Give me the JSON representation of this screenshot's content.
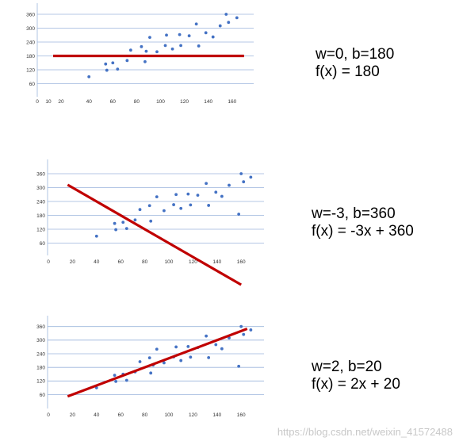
{
  "chart_data": [
    {
      "type": "scatter",
      "x_ticks": [
        0,
        10,
        20,
        40,
        60,
        80,
        100,
        120,
        140,
        160
      ],
      "y_ticks": [
        60,
        120,
        180,
        240,
        300,
        360
      ],
      "points": [
        [
          40,
          90
        ],
        [
          54,
          145
        ],
        [
          55,
          118
        ],
        [
          60,
          150
        ],
        [
          64,
          123
        ],
        [
          72,
          160
        ],
        [
          75,
          205
        ],
        [
          84,
          220
        ],
        [
          87,
          155
        ],
        [
          88,
          200
        ],
        [
          91,
          260
        ],
        [
          97,
          198
        ],
        [
          104,
          225
        ],
        [
          105,
          270
        ],
        [
          110,
          210
        ],
        [
          116,
          272
        ],
        [
          117,
          225
        ],
        [
          124,
          267
        ],
        [
          130,
          318
        ],
        [
          132,
          223
        ],
        [
          138,
          280
        ],
        [
          144,
          262
        ],
        [
          150,
          310
        ],
        [
          155,
          360
        ],
        [
          157,
          325
        ],
        [
          164,
          345
        ]
      ],
      "line": {
        "w": 0,
        "b": 180,
        "x_start": 10,
        "x_end": 170
      },
      "color_points": "#4472c4",
      "color_line": "#c00000",
      "equation_params": "w=0, b=180",
      "equation_formula": "f(x) = 180"
    },
    {
      "type": "scatter",
      "x_ticks": [
        0,
        20,
        40,
        60,
        80,
        100,
        120,
        140,
        160
      ],
      "y_ticks": [
        60,
        120,
        180,
        240,
        300,
        360
      ],
      "points": [
        [
          40,
          90
        ],
        [
          55,
          145
        ],
        [
          56,
          118
        ],
        [
          62,
          150
        ],
        [
          65,
          123
        ],
        [
          72,
          160
        ],
        [
          76,
          205
        ],
        [
          84,
          222
        ],
        [
          85,
          155
        ],
        [
          90,
          260
        ],
        [
          96,
          200
        ],
        [
          104,
          226
        ],
        [
          106,
          270
        ],
        [
          110,
          210
        ],
        [
          116,
          272
        ],
        [
          118,
          225
        ],
        [
          124,
          267
        ],
        [
          131,
          318
        ],
        [
          133,
          223
        ],
        [
          139,
          280
        ],
        [
          144,
          262
        ],
        [
          150,
          310
        ],
        [
          158,
          185
        ],
        [
          160,
          360
        ],
        [
          162,
          325
        ],
        [
          168,
          345
        ]
      ],
      "line": {
        "w": -3,
        "b": 360,
        "x_start": 16,
        "x_end": 160
      },
      "color_points": "#4472c4",
      "color_line": "#c00000",
      "equation_params": "w=-3, b=360",
      "equation_formula": "f(x) = -3x + 360"
    },
    {
      "type": "scatter",
      "x_ticks": [
        0,
        20,
        40,
        60,
        80,
        100,
        120,
        140,
        160
      ],
      "y_ticks": [
        60,
        120,
        180,
        240,
        300,
        360
      ],
      "points": [
        [
          40,
          90
        ],
        [
          55,
          145
        ],
        [
          56,
          118
        ],
        [
          62,
          150
        ],
        [
          65,
          123
        ],
        [
          72,
          160
        ],
        [
          76,
          205
        ],
        [
          84,
          222
        ],
        [
          85,
          155
        ],
        [
          87,
          190
        ],
        [
          90,
          260
        ],
        [
          96,
          200
        ],
        [
          104,
          226
        ],
        [
          106,
          270
        ],
        [
          110,
          210
        ],
        [
          116,
          272
        ],
        [
          118,
          225
        ],
        [
          124,
          267
        ],
        [
          131,
          318
        ],
        [
          133,
          223
        ],
        [
          139,
          280
        ],
        [
          144,
          262
        ],
        [
          150,
          310
        ],
        [
          158,
          185
        ],
        [
          160,
          360
        ],
        [
          162,
          325
        ],
        [
          168,
          345
        ]
      ],
      "line": {
        "w": 2,
        "b": 20,
        "x_start": 16,
        "x_end": 165
      },
      "color_points": "#4472c4",
      "color_line": "#c00000",
      "equation_params": "w=2, b=20",
      "equation_formula": "f(x) = 2x + 20"
    }
  ],
  "watermark": "https://blog.csdn.net/weixin_41572488"
}
